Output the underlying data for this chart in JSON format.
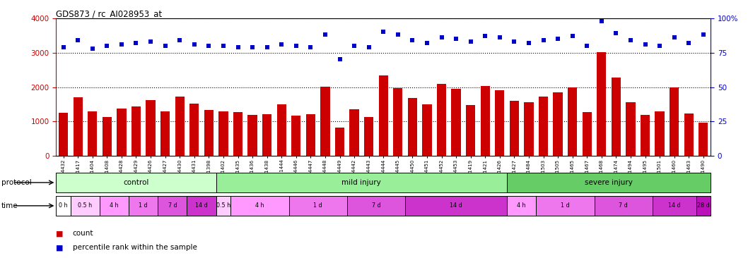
{
  "title": "GDS873 / rc_AI028953_at",
  "samples": [
    "GSM4432",
    "GSM31417",
    "GSM31404",
    "GSM31408",
    "GSM4428",
    "GSM4429",
    "GSM4426",
    "GSM4427",
    "GSM4430",
    "GSM4431",
    "GSM31398",
    "GSM31402",
    "GSM31435",
    "GSM31436",
    "GSM31438",
    "GSM31444",
    "GSM4446",
    "GSM4447",
    "GSM4448",
    "GSM4449",
    "GSM4442",
    "GSM4443",
    "GSM4444",
    "GSM4445",
    "GSM4450",
    "GSM4451",
    "GSM4452",
    "GSM4453",
    "GSM31419",
    "GSM31421",
    "GSM31426",
    "GSM31427",
    "GSM31484",
    "GSM31503",
    "GSM31505",
    "GSM31465",
    "GSM31467",
    "GSM31468",
    "GSM31474",
    "GSM31494",
    "GSM31495",
    "GSM31501",
    "GSM31460",
    "GSM31463",
    "GSM31490"
  ],
  "bar_values": [
    1260,
    1700,
    1290,
    1140,
    1380,
    1430,
    1620,
    1290,
    1720,
    1520,
    1340,
    1300,
    1270,
    1200,
    1210,
    1500,
    1170,
    1210,
    2020,
    820,
    1360,
    1130,
    2330,
    1970,
    1680,
    1490,
    2100,
    1950,
    1480,
    2040,
    1900,
    1610,
    1560,
    1730,
    1850,
    2000,
    1270,
    3010,
    2270,
    1570,
    1190,
    1300,
    1990,
    1240,
    960
  ],
  "percentile_values": [
    79,
    84,
    78,
    80,
    81,
    82,
    83,
    80,
    84,
    81,
    80,
    80,
    79,
    79,
    79,
    81,
    80,
    79,
    88,
    70,
    80,
    79,
    90,
    88,
    84,
    82,
    86,
    85,
    83,
    87,
    86,
    83,
    82,
    84,
    85,
    87,
    80,
    98,
    89,
    84,
    81,
    80,
    86,
    82,
    88
  ],
  "bar_color": "#cc0000",
  "dot_color": "#0000cc",
  "ylim_left": [
    0,
    4000
  ],
  "ylim_right": [
    0,
    100
  ],
  "yticks_left": [
    0,
    1000,
    2000,
    3000,
    4000
  ],
  "yticks_right": [
    0,
    25,
    50,
    75,
    100
  ],
  "protocol_groups": [
    {
      "label": "control",
      "start": 0,
      "end": 11,
      "color": "#ccffcc"
    },
    {
      "label": "mild injury",
      "start": 11,
      "end": 31,
      "color": "#99ee99"
    },
    {
      "label": "severe injury",
      "start": 31,
      "end": 45,
      "color": "#66cc66"
    }
  ],
  "time_groups": [
    {
      "label": "0 h",
      "start": 0,
      "end": 1,
      "color": "#ffffff"
    },
    {
      "label": "0.5 h",
      "start": 1,
      "end": 3,
      "color": "#ffccff"
    },
    {
      "label": "4 h",
      "start": 3,
      "end": 5,
      "color": "#ff99ff"
    },
    {
      "label": "1 d",
      "start": 5,
      "end": 7,
      "color": "#ee77ee"
    },
    {
      "label": "7 d",
      "start": 7,
      "end": 9,
      "color": "#dd55dd"
    },
    {
      "label": "14 d",
      "start": 9,
      "end": 11,
      "color": "#cc33cc"
    },
    {
      "label": "0.5 h",
      "start": 11,
      "end": 12,
      "color": "#ffccff"
    },
    {
      "label": "4 h",
      "start": 12,
      "end": 16,
      "color": "#ff99ff"
    },
    {
      "label": "1 d",
      "start": 16,
      "end": 20,
      "color": "#ee77ee"
    },
    {
      "label": "7 d",
      "start": 20,
      "end": 24,
      "color": "#dd55dd"
    },
    {
      "label": "14 d",
      "start": 24,
      "end": 31,
      "color": "#cc33cc"
    },
    {
      "label": "4 h",
      "start": 31,
      "end": 33,
      "color": "#ff99ff"
    },
    {
      "label": "1 d",
      "start": 33,
      "end": 37,
      "color": "#ee77ee"
    },
    {
      "label": "7 d",
      "start": 37,
      "end": 41,
      "color": "#dd55dd"
    },
    {
      "label": "14 d",
      "start": 41,
      "end": 44,
      "color": "#cc33cc"
    },
    {
      "label": "28 d",
      "start": 44,
      "end": 45,
      "color": "#bb11bb"
    }
  ],
  "fig_width": 10.58,
  "fig_height": 3.66,
  "dpi": 100
}
